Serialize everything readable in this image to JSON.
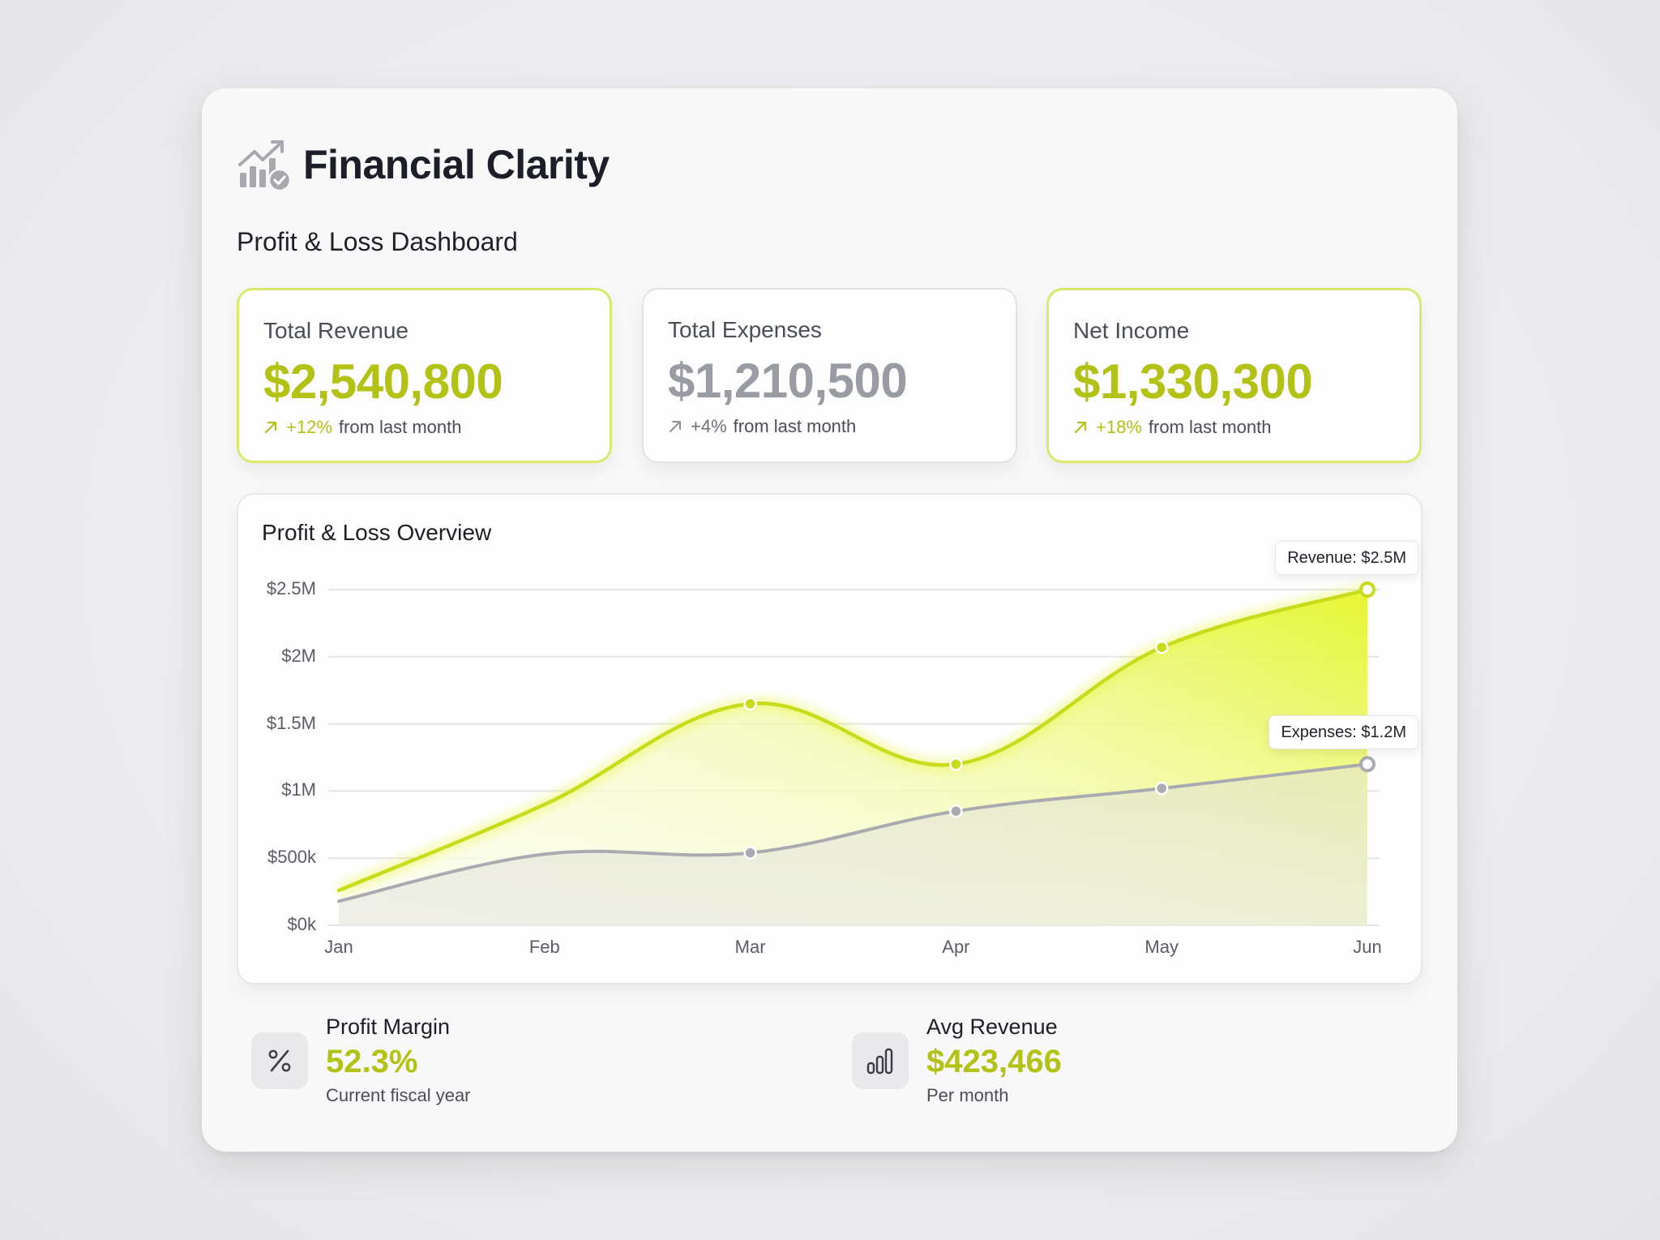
{
  "app": {
    "title": "Financial Clarity",
    "subtitle": "Profit & Loss Dashboard",
    "logo_icon": "chart-growth-check-icon"
  },
  "colors": {
    "accent_text": "#b3c216",
    "accent_fill": "#e2f51a",
    "accent_line": "#c8dc1e",
    "expense_line": "#a9abb0",
    "muted_text": "#9a9ca3",
    "panel_bg": "#f8f8f9",
    "page_bg": "#ececee"
  },
  "kpis": [
    {
      "label": "Total Revenue",
      "value": "$2,540,800",
      "change": "+12%",
      "change_suffix": "from last month",
      "icon": "arrow-up-right-icon",
      "style": "accent"
    },
    {
      "label": "Total Expenses",
      "value": "$1,210,500",
      "change": "+4%",
      "change_suffix": "from last month",
      "icon": "arrow-up-right-icon",
      "style": "neutral"
    },
    {
      "label": "Net Income",
      "value": "$1,330,300",
      "change": "+18%",
      "change_suffix": "from last month",
      "icon": "arrow-up-right-icon",
      "style": "accent"
    }
  ],
  "chart_data": {
    "type": "area",
    "title": "Profit & Loss Overview",
    "categories": [
      "Jan",
      "Feb",
      "Mar",
      "Apr",
      "May",
      "Jun"
    ],
    "series": [
      {
        "name": "Revenue",
        "values": [
          0.26,
          0.9,
          1.65,
          1.2,
          2.07,
          2.5
        ],
        "unit": "M",
        "color": "#c8dc1e",
        "fill": "#e2f51a"
      },
      {
        "name": "Expenses",
        "values": [
          0.18,
          0.53,
          0.54,
          0.85,
          1.02,
          1.2
        ],
        "unit": "M",
        "color": "#a9abb0",
        "fill": "#d9dad6"
      }
    ],
    "yticks": [
      {
        "value": 0,
        "label": "$0k"
      },
      {
        "value": 0.5,
        "label": "$500k"
      },
      {
        "value": 1.0,
        "label": "$1M"
      },
      {
        "value": 1.5,
        "label": "$1.5M"
      },
      {
        "value": 2.0,
        "label": "$2M"
      },
      {
        "value": 2.5,
        "label": "$2.5M"
      }
    ],
    "ylim": [
      0,
      2.5
    ],
    "xlabel": "",
    "ylabel": "",
    "grid": true,
    "legend": "none",
    "annotations": [
      {
        "series": "Revenue",
        "index": 5,
        "text": "Revenue: $2.5M"
      },
      {
        "series": "Expenses",
        "index": 5,
        "text": "Expenses: $1.2M"
      }
    ]
  },
  "stats": [
    {
      "label": "Profit Margin",
      "value": "52.3%",
      "sub": "Current fiscal year",
      "icon": "percent-icon"
    },
    {
      "label": "Avg Revenue",
      "value": "$423,466",
      "sub": "Per month",
      "icon": "bar-chart-icon"
    }
  ]
}
